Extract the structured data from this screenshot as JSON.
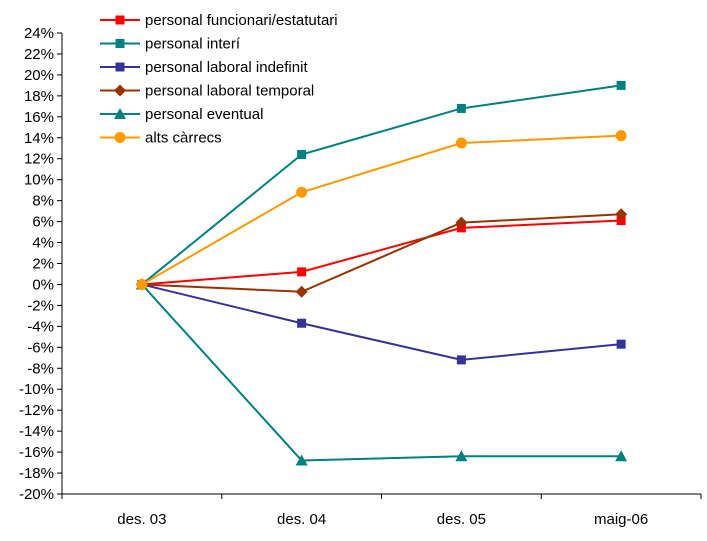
{
  "chart_data": {
    "type": "line",
    "title": "",
    "xlabel": "",
    "ylabel": "",
    "categories": [
      "des. 03",
      "des. 04",
      "des. 05",
      "maig-06"
    ],
    "ylim": [
      -20,
      24
    ],
    "ytick_step": 2,
    "ytick_format": "percent",
    "grid": false,
    "legend_position": "top-left",
    "series": [
      {
        "name": "personal funcionari/estatutari",
        "color": "#ff0000",
        "marker": "square",
        "values": [
          0,
          1.2,
          5.4,
          6.1
        ]
      },
      {
        "name": "personal interí",
        "color": "#008080",
        "marker": "square",
        "values": [
          0,
          12.4,
          16.8,
          19.0
        ]
      },
      {
        "name": "personal laboral indefinit",
        "color": "#333399",
        "marker": "square",
        "values": [
          0,
          -3.7,
          -7.2,
          -5.7
        ]
      },
      {
        "name": "personal laboral temporal",
        "color": "#993300",
        "marker": "diamond",
        "values": [
          0,
          -0.7,
          5.9,
          6.7
        ]
      },
      {
        "name": "personal eventual",
        "color": "#008080",
        "marker": "triangle",
        "values": [
          0,
          -16.8,
          -16.4,
          -16.4
        ]
      },
      {
        "name": "alts càrrecs",
        "color": "#ff9900",
        "marker": "circle",
        "values": [
          0,
          8.8,
          13.5,
          14.2
        ]
      }
    ]
  }
}
